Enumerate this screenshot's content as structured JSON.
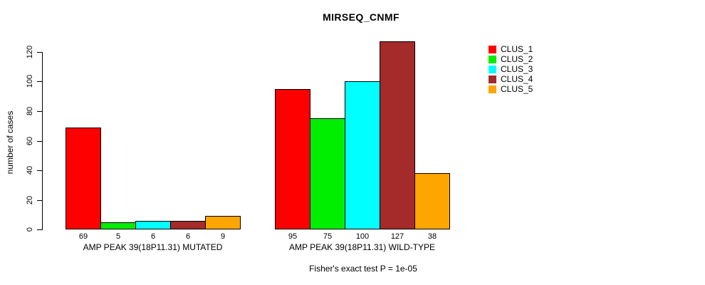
{
  "chart_data": {
    "type": "bar",
    "title": "MIRSEQ_CNMF",
    "ylabel": "number of cases",
    "ylim": [
      0,
      120
    ],
    "yticks": [
      0,
      20,
      40,
      60,
      80,
      100,
      120
    ],
    "grid": false,
    "legend_position": "right",
    "series_names": [
      "CLUS_1",
      "CLUS_2",
      "CLUS_3",
      "CLUS_4",
      "CLUS_5"
    ],
    "colors": [
      "#FF0000",
      "#00EE00",
      "#00FFFF",
      "#A52A2A",
      "#FFA500"
    ],
    "groups": [
      {
        "label": "AMP PEAK 39(18P11.31) MUTATED",
        "values": [
          69,
          5,
          6,
          6,
          9
        ]
      },
      {
        "label": "AMP PEAK 39(18P11.31) WILD-TYPE",
        "values": [
          95,
          75,
          100,
          127,
          38
        ]
      }
    ],
    "annotation": "Fisher's exact test P = 1e-05"
  }
}
